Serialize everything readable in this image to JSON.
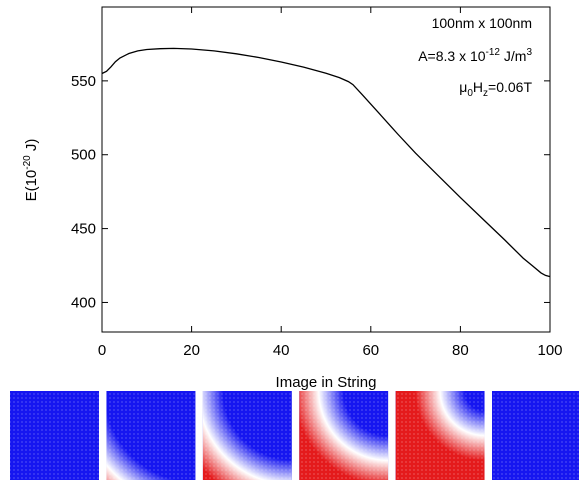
{
  "chart_data": {
    "type": "line",
    "xlabel": "Image in String",
    "ylabel": {
      "base": "E(10",
      "sup": "-20",
      "tail": " J)"
    },
    "xlim": [
      0,
      100
    ],
    "ylim": [
      380,
      600
    ],
    "xticks": [
      0,
      20,
      40,
      60,
      80,
      100
    ],
    "yticks": [
      400,
      450,
      500,
      550
    ],
    "grid": false,
    "annotations": {
      "size": "100nm x 100nm",
      "exchange": {
        "base": "A=8.3 x 10",
        "sup": "-12",
        "tail": " J/m",
        "sup2": "3"
      },
      "field": {
        "base": "μ",
        "sub": "0",
        "mid": "H",
        "sub2": "z",
        "tail": "=0.06T"
      }
    },
    "series": [
      {
        "color": "#000000",
        "x": [
          0,
          1,
          2,
          3,
          4,
          6,
          8,
          10,
          13,
          16,
          20,
          25,
          30,
          35,
          40,
          45,
          50,
          53,
          55,
          56,
          58,
          62,
          66,
          70,
          75,
          80,
          85,
          90,
          94,
          96,
          98,
          99,
          100
        ],
        "y": [
          555,
          556.5,
          559.5,
          563,
          565.5,
          568.5,
          570.3,
          571.2,
          571.8,
          572,
          571.6,
          570.3,
          568.3,
          565.8,
          562.8,
          559.3,
          555.2,
          552.2,
          549.5,
          547.5,
          541,
          527.5,
          514,
          501,
          486,
          471,
          456.5,
          442,
          430,
          425,
          420,
          418.3,
          417.5
        ]
      }
    ]
  },
  "snapshots": {
    "count": 6,
    "colors": {
      "up": "#e41a1c",
      "down": "#1616f0",
      "wall": "#ffffff"
    },
    "wall_positions": [
      1.75,
      1.3,
      1.05,
      0.78,
      0.5,
      -0.25
    ]
  }
}
